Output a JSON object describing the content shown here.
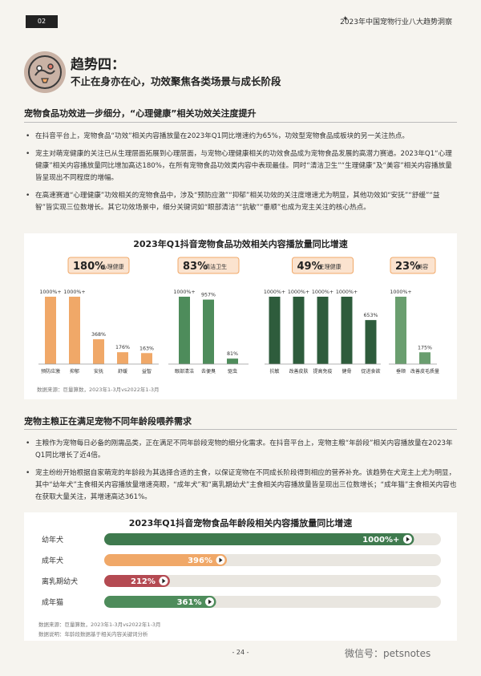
{
  "header": {
    "page_tag": "02",
    "report_title": "2023年中国宠物行业八大趋势洞察"
  },
  "trend": {
    "title": "趋势四：",
    "subtitle": "不止在身亦在心，功效聚焦各类场景与成长阶段"
  },
  "section1": {
    "heading": "宠物食品功效进一步细分，“心理健康”相关功效关注度提升",
    "bullets": [
      "在抖音平台上，宠物食品“功效”相关内容播放量在2023年Q1同比增速约为65%，功效型宠物食品成板块的另一关注热点。",
      "宠主对萌宠健康的关注已从生理层面拓展到心理层面，与宠物心理健康相关的功效食品成为宠物食品发展的高潜力赛道。2023年Q1“心理健康”相关内容播放量同比增加高达180%，在所有宠物食品功效类内容中表现最佳。同时“清洁卫生”“生理健康”及“美容”相关内容播放量皆呈现出不同程度的增幅。",
      "在高速赛道“心理健康”功效相关的宠物食品中，涉及“预防应激”“抑郁”相关功效的关注度增速尤为明显，其他功效如“安抚”“舒缓”“益智”皆实现三位数增长。其它功效场景中，细分关键词如“眼部清洁”“抗敏”“垂顺”也成为宠主关注的核心热点。"
    ]
  },
  "chart1": {
    "title": "2023年Q1抖音宠物食品功效相关内容播放量同比增速",
    "source": "数据来源：巨量算数，2023年1-3月vs2022年1-3月"
  },
  "section2": {
    "heading": "宠物主粮正在满足宠物不同年龄段喂养需求",
    "bullets": [
      "主粮作为宠物每日必备的刚需品类，正在满足不同年龄段宠物的细分化需求。在抖音平台上，宠物主粮“年龄段”相关内容播放量在2023年Q1同比增长了近4倍。",
      "宠主纷纷开始根据自家萌宠的年龄段为其选择合适的主食，以保证宠物在不同成长阶段得到相应的营养补充。该趋势在犬宠主上尤为明显，其中“幼年犬”主食相关内容播放量增速亮眼，“成年犬”和“离乳期幼犬”主食相关内容播放量皆呈现出三位数增长；“成年猫”主食相关内容也在获取大量关注，其增速高达361%。"
    ]
  },
  "chart2": {
    "title": "2023年Q1抖音宠物食品年龄段相关内容播放量同比增速",
    "source_lines": [
      "数据来源：巨量算数，2023年1-3月vs2022年1-3月",
      "数据说明：年龄段数据基于相关内容关键词分析"
    ]
  },
  "chart_data": [
    {
      "type": "bar",
      "title": "2023年Q1抖音宠物食品功效相关内容播放量同比增速",
      "groups": [
        {
          "name": "心理健康",
          "growth_label": "180%",
          "color": "#f0a868",
          "categories": [
            "预防应激",
            "抑郁",
            "安抚",
            "舒缓",
            "益智"
          ],
          "values": [
            1000,
            1000,
            368,
            176,
            163
          ],
          "labels": [
            "1000%+",
            "1000%+",
            "368%",
            "176%",
            "163%"
          ]
        },
        {
          "name": "清洁卫生",
          "growth_label": "83%",
          "color": "#4e8c5b",
          "categories": [
            "眼部清洁",
            "去便臭",
            "驱虫"
          ],
          "values": [
            1000,
            957,
            81
          ],
          "labels": [
            "1000%+",
            "957%",
            "81%"
          ]
        },
        {
          "name": "生理健康",
          "growth_label": "49%",
          "color": "#2e5c3c",
          "categories": [
            "抗敏",
            "改善皮肤",
            "提高免疫",
            "健骨",
            "促进食欲"
          ],
          "values": [
            1000,
            1000,
            1000,
            1000,
            653
          ],
          "labels": [
            "1000%+",
            "1000%+",
            "1000%+",
            "1000%+",
            "653%"
          ]
        },
        {
          "name": "美容",
          "growth_label": "23%",
          "color": "#6a9e6f",
          "categories": [
            "垂顺",
            "改善皮毛质量"
          ],
          "values": [
            1000,
            175
          ],
          "labels": [
            "1000%+",
            "175%"
          ]
        }
      ]
    },
    {
      "type": "bar",
      "title": "2023年Q1抖音宠物食品年龄段相关内容播放量同比增速",
      "categories": [
        "幼年犬",
        "成年犬",
        "离乳期幼犬",
        "成年猫"
      ],
      "values": [
        1000,
        396,
        212,
        361
      ],
      "labels": [
        "1000%+",
        "396%",
        "212%",
        "361%"
      ],
      "colors": [
        "#3f7a4e",
        "#f0a868",
        "#b44a52",
        "#4e8c5b"
      ]
    }
  ],
  "footer": {
    "page_number": "- 24 -",
    "watermark": "微信号：petsnotes"
  }
}
